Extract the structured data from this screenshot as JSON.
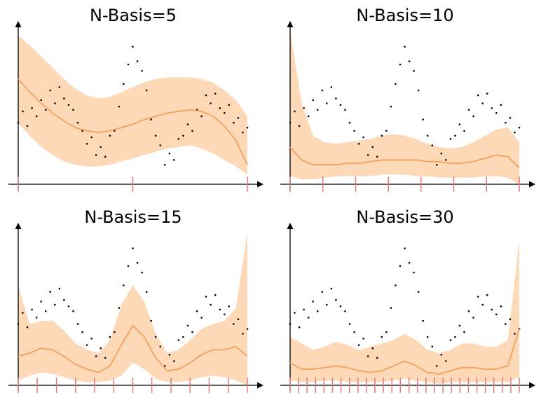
{
  "chart_data": [
    {
      "type": "spline",
      "title": "N-Basis=5",
      "xlim": [
        0,
        100
      ],
      "ylim": [
        0,
        100
      ],
      "points": {
        "color": "#000000",
        "x": [
          0,
          2,
          4,
          6,
          8,
          10,
          12,
          14,
          16,
          18,
          20,
          22,
          24,
          26,
          28,
          30,
          32,
          34,
          36,
          38,
          40,
          42,
          44,
          46,
          48,
          50,
          52,
          54,
          56,
          58,
          60,
          62,
          64,
          66,
          68,
          70,
          72,
          74,
          76,
          78,
          80,
          82,
          84,
          86,
          88,
          90,
          92,
          94,
          96,
          98,
          100
        ],
        "y": [
          38,
          45,
          36,
          47,
          42,
          52,
          46,
          58,
          50,
          60,
          53,
          49,
          46,
          38,
          33,
          25,
          29,
          18,
          23,
          17,
          30,
          33,
          48,
          62,
          74,
          85,
          76,
          70,
          58,
          40,
          30,
          24,
          12,
          19,
          15,
          28,
          30,
          37,
          33,
          46,
          42,
          55,
          50,
          56,
          47,
          44,
          49,
          38,
          41,
          32,
          35
        ]
      },
      "fit": {
        "color": "#f5a05a",
        "band_color": "#fdd9b8",
        "x": [
          0,
          5,
          10,
          15,
          20,
          25,
          30,
          35,
          40,
          45,
          50,
          55,
          60,
          65,
          70,
          75,
          80,
          85,
          90,
          95,
          100
        ],
        "values": [
          65,
          57,
          50,
          44,
          39,
          35,
          33,
          32,
          33,
          35,
          37,
          40,
          42,
          44,
          45,
          46,
          45,
          42,
          36,
          27,
          12
        ],
        "upper": [
          92,
          86,
          79,
          72,
          65,
          59,
          55,
          53,
          54,
          57,
          60,
          63,
          65,
          66,
          66,
          66,
          65,
          63,
          58,
          52,
          42
        ],
        "lower": [
          38,
          30,
          23,
          18,
          14,
          12,
          11,
          11,
          12,
          14,
          16,
          18,
          20,
          22,
          23,
          24,
          22,
          19,
          15,
          11,
          6
        ]
      },
      "knots": {
        "color": "#e07b7b",
        "values": [
          0,
          50,
          100
        ]
      }
    },
    {
      "type": "spline",
      "title": "N-Basis=10",
      "xlim": [
        0,
        100
      ],
      "ylim": [
        0,
        100
      ],
      "points": {
        "color": "#000000",
        "x": [
          0,
          2,
          4,
          6,
          8,
          10,
          12,
          14,
          16,
          18,
          20,
          22,
          24,
          26,
          28,
          30,
          32,
          34,
          36,
          38,
          40,
          42,
          44,
          46,
          48,
          50,
          52,
          54,
          56,
          58,
          60,
          62,
          64,
          66,
          68,
          70,
          72,
          74,
          76,
          78,
          80,
          82,
          84,
          86,
          88,
          90,
          92,
          94,
          96,
          98,
          100
        ],
        "y": [
          38,
          45,
          36,
          47,
          42,
          52,
          46,
          58,
          50,
          60,
          53,
          49,
          46,
          38,
          33,
          25,
          29,
          18,
          23,
          17,
          30,
          33,
          48,
          62,
          74,
          85,
          76,
          70,
          58,
          40,
          30,
          24,
          12,
          19,
          15,
          28,
          30,
          37,
          33,
          46,
          42,
          55,
          50,
          56,
          47,
          44,
          49,
          38,
          41,
          32,
          35
        ]
      },
      "fit": {
        "color": "#f5a05a",
        "band_color": "#fdd9b8",
        "x": [
          0,
          5,
          10,
          15,
          20,
          25,
          30,
          35,
          40,
          45,
          50,
          55,
          60,
          65,
          70,
          75,
          80,
          85,
          90,
          95,
          100
        ],
        "values": [
          23,
          15,
          12,
          12,
          12,
          13,
          13,
          14,
          15,
          15,
          15,
          15,
          14,
          14,
          13,
          13,
          14,
          16,
          18,
          17,
          10
        ],
        "upper": [
          96,
          50,
          30,
          26,
          25,
          26,
          27,
          28,
          30,
          31,
          30,
          28,
          25,
          23,
          22,
          23,
          26,
          30,
          34,
          35,
          26
        ],
        "lower": [
          5,
          3,
          3,
          4,
          5,
          5,
          5,
          5,
          6,
          6,
          6,
          5,
          5,
          4,
          4,
          4,
          4,
          5,
          5,
          4,
          0
        ]
      },
      "knots": {
        "color": "#e07b7b",
        "values": [
          0,
          14.3,
          28.6,
          42.9,
          57.1,
          71.4,
          85.7,
          100
        ]
      }
    },
    {
      "type": "spline",
      "title": "N-Basis=15",
      "xlim": [
        0,
        100
      ],
      "ylim": [
        0,
        100
      ],
      "points": {
        "color": "#000000",
        "x": [
          0,
          2,
          4,
          6,
          8,
          10,
          12,
          14,
          16,
          18,
          20,
          22,
          24,
          26,
          28,
          30,
          32,
          34,
          36,
          38,
          40,
          42,
          44,
          46,
          48,
          50,
          52,
          54,
          56,
          58,
          60,
          62,
          64,
          66,
          68,
          70,
          72,
          74,
          76,
          78,
          80,
          82,
          84,
          86,
          88,
          90,
          92,
          94,
          96,
          98,
          100
        ],
        "y": [
          38,
          45,
          36,
          47,
          42,
          52,
          46,
          58,
          50,
          60,
          53,
          49,
          46,
          38,
          33,
          25,
          29,
          18,
          23,
          17,
          30,
          33,
          48,
          62,
          74,
          85,
          76,
          70,
          58,
          40,
          30,
          24,
          12,
          19,
          15,
          28,
          30,
          37,
          33,
          46,
          42,
          55,
          50,
          56,
          47,
          44,
          49,
          38,
          41,
          32,
          35
        ]
      },
      "fit": {
        "color": "#f5a05a",
        "band_color": "#fdd9b8",
        "x": [
          0,
          5,
          10,
          15,
          20,
          25,
          30,
          35,
          40,
          45,
          50,
          55,
          60,
          65,
          70,
          75,
          80,
          85,
          90,
          95,
          100
        ],
        "values": [
          18,
          20,
          23,
          22,
          18,
          13,
          10,
          8,
          12,
          25,
          37,
          30,
          17,
          9,
          10,
          14,
          19,
          22,
          22,
          24,
          18
        ],
        "upper": [
          62,
          38,
          40,
          40,
          34,
          26,
          22,
          20,
          28,
          50,
          62,
          52,
          32,
          20,
          22,
          28,
          35,
          38,
          40,
          48,
          95
        ],
        "lower": [
          3,
          6,
          8,
          7,
          5,
          3,
          2,
          2,
          3,
          6,
          14,
          10,
          4,
          2,
          2,
          3,
          5,
          6,
          5,
          3,
          0
        ]
      },
      "knots": {
        "color": "#e07b7b",
        "values": [
          0,
          8.3,
          16.7,
          25,
          33.3,
          41.7,
          50,
          58.3,
          66.7,
          75,
          83.3,
          91.7,
          100
        ]
      }
    },
    {
      "type": "spline",
      "title": "N-Basis=30",
      "xlim": [
        0,
        100
      ],
      "ylim": [
        0,
        100
      ],
      "points": {
        "color": "#000000",
        "x": [
          0,
          2,
          4,
          6,
          8,
          10,
          12,
          14,
          16,
          18,
          20,
          22,
          24,
          26,
          28,
          30,
          32,
          34,
          36,
          38,
          40,
          42,
          44,
          46,
          48,
          50,
          52,
          54,
          56,
          58,
          60,
          62,
          64,
          66,
          68,
          70,
          72,
          74,
          76,
          78,
          80,
          82,
          84,
          86,
          88,
          90,
          92,
          94,
          96,
          98,
          100
        ],
        "y": [
          38,
          45,
          36,
          47,
          42,
          52,
          46,
          58,
          50,
          60,
          53,
          49,
          46,
          38,
          33,
          25,
          29,
          18,
          23,
          17,
          30,
          33,
          48,
          62,
          74,
          85,
          76,
          70,
          58,
          40,
          30,
          24,
          12,
          19,
          15,
          28,
          30,
          37,
          33,
          46,
          42,
          55,
          50,
          56,
          47,
          44,
          49,
          38,
          41,
          32,
          35
        ]
      },
      "fit": {
        "color": "#f5a05a",
        "band_color": "#fdd9b8",
        "x": [
          0,
          5,
          10,
          15,
          20,
          25,
          30,
          35,
          40,
          45,
          50,
          55,
          60,
          65,
          70,
          75,
          80,
          85,
          90,
          95,
          100
        ],
        "values": [
          14,
          10,
          10,
          11,
          12,
          11,
          9,
          8,
          9,
          12,
          15,
          12,
          8,
          7,
          9,
          11,
          11,
          10,
          10,
          12,
          35
        ],
        "upper": [
          30,
          26,
          22,
          24,
          27,
          25,
          22,
          24,
          26,
          28,
          32,
          28,
          22,
          20,
          22,
          26,
          26,
          24,
          24,
          28,
          90
        ],
        "lower": [
          3,
          2,
          2,
          3,
          3,
          2,
          2,
          2,
          2,
          3,
          4,
          3,
          2,
          1,
          2,
          2,
          2,
          2,
          2,
          2,
          5
        ]
      },
      "knots": {
        "color": "#e07b7b",
        "values": [
          0,
          3.7,
          7.4,
          11.1,
          14.8,
          18.5,
          22.2,
          25.9,
          29.6,
          33.3,
          37,
          40.7,
          44.4,
          48.1,
          51.9,
          55.6,
          59.3,
          63,
          66.7,
          70.4,
          74.1,
          77.8,
          81.5,
          85.2,
          88.9,
          92.6,
          96.3,
          100
        ]
      }
    }
  ]
}
